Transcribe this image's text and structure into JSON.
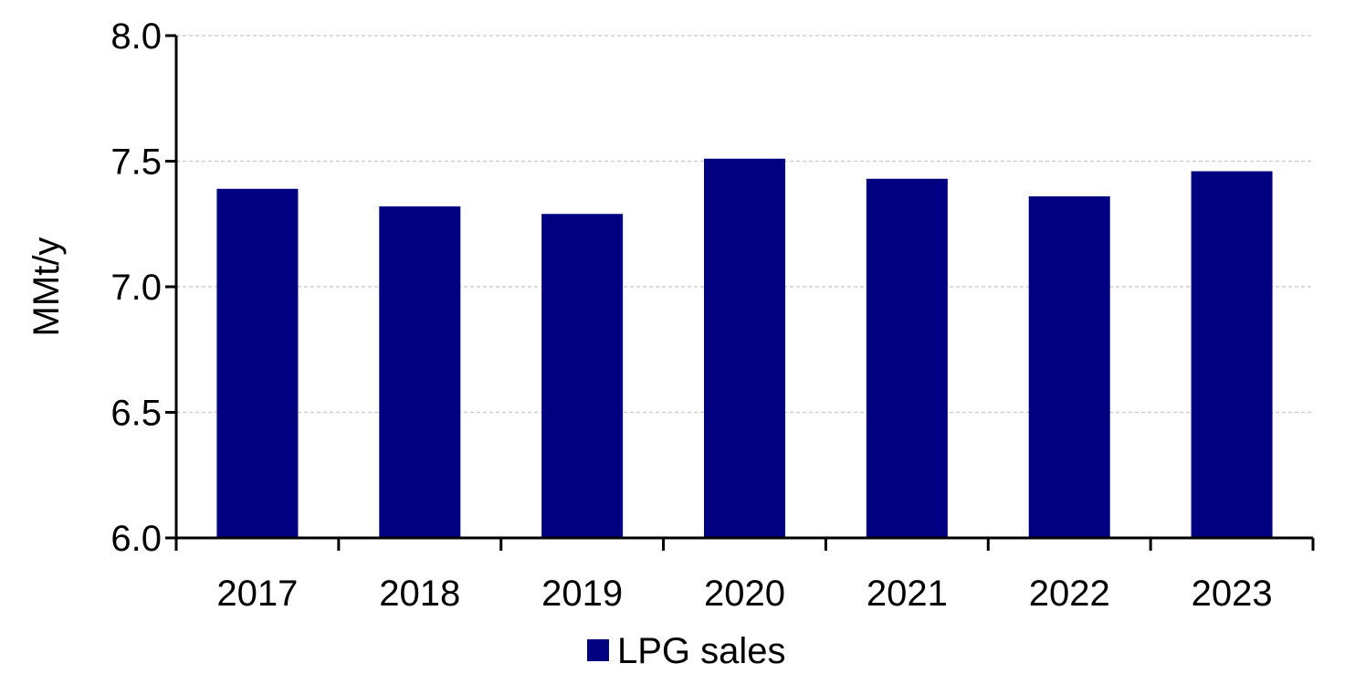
{
  "chart_data": {
    "type": "bar",
    "categories": [
      "2017",
      "2018",
      "2019",
      "2020",
      "2021",
      "2022",
      "2023"
    ],
    "series": [
      {
        "name": "LPG sales",
        "values": [
          7.39,
          7.32,
          7.29,
          7.51,
          7.43,
          7.36,
          7.46
        ],
        "color": "#000080"
      }
    ],
    "ylabel": "MMt/y",
    "ylim": [
      6.0,
      8.0
    ],
    "yticks": [
      "6.0",
      "6.5",
      "7.0",
      "7.5",
      "8.0"
    ],
    "grid": "horizontal dashed",
    "legend_position": "bottom-center"
  }
}
